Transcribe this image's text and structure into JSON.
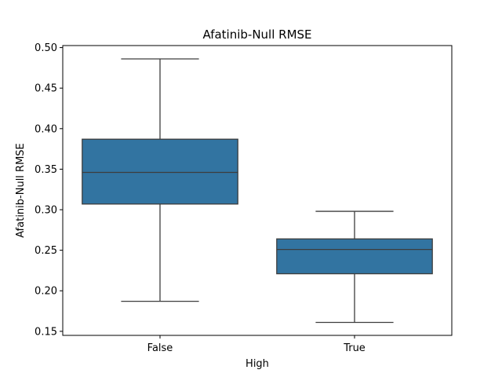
{
  "chart_data": {
    "type": "box",
    "title": "Afatinib-Null RMSE",
    "xlabel": "High",
    "ylabel": "Afatinib-Null RMSE",
    "categories": [
      "False",
      "True"
    ],
    "ylim": [
      0.145,
      0.5025
    ],
    "yticks": [
      0.15,
      0.2,
      0.25,
      0.3,
      0.35,
      0.4,
      0.45,
      0.5
    ],
    "ytick_labels": [
      "0.15",
      "0.20",
      "0.25",
      "0.30",
      "0.35",
      "0.40",
      "0.45",
      "0.50"
    ],
    "boxes": [
      {
        "category": "False",
        "whisker_low": 0.187,
        "q1": 0.307,
        "median": 0.346,
        "q3": 0.387,
        "whisker_high": 0.486
      },
      {
        "category": "True",
        "whisker_low": 0.161,
        "q1": 0.221,
        "median": 0.251,
        "q3": 0.264,
        "whisker_high": 0.298
      }
    ],
    "box_color": "#3274a1",
    "line_color": "#3d3d3d",
    "grid": false,
    "legend": "none"
  }
}
